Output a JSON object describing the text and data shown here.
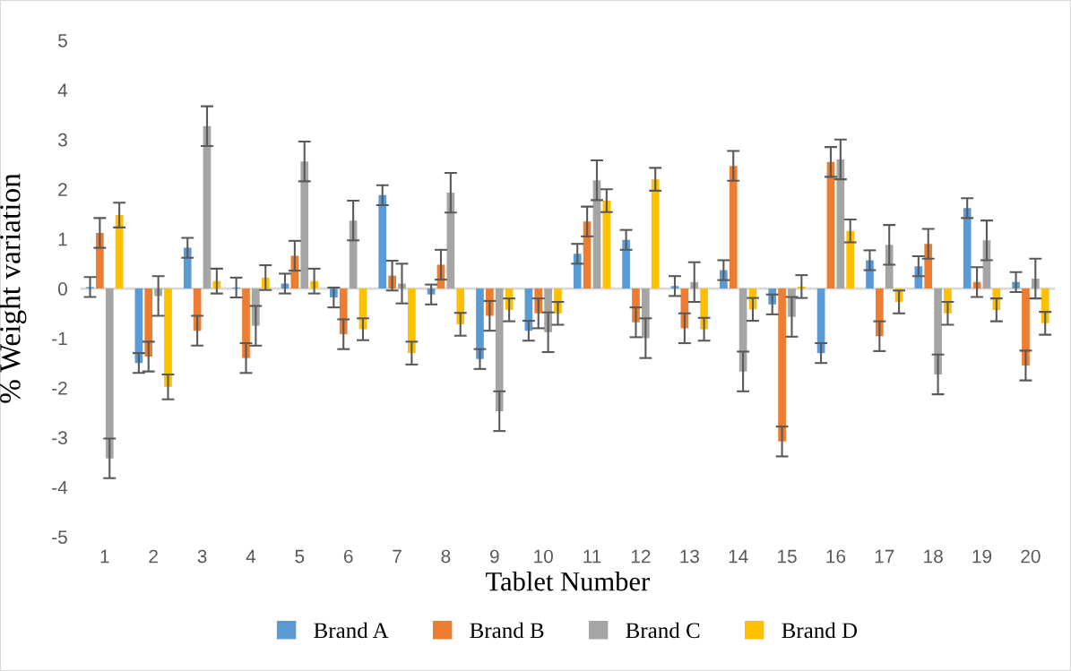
{
  "chart_data": {
    "type": "bar",
    "xlabel": "Tablet Number",
    "ylabel": "% Weight variation",
    "categories": [
      "1",
      "2",
      "3",
      "4",
      "5",
      "6",
      "7",
      "8",
      "9",
      "10",
      "11",
      "12",
      "13",
      "14",
      "15",
      "16",
      "17",
      "18",
      "19",
      "20"
    ],
    "series": [
      {
        "name": "Brand A",
        "color": "#5b9bd5",
        "values": [
          0.03,
          -1.5,
          0.82,
          0.02,
          0.1,
          -0.18,
          1.88,
          -0.12,
          -1.42,
          -0.85,
          0.7,
          0.98,
          0.05,
          0.37,
          -0.32,
          -1.3,
          0.57,
          0.45,
          1.62,
          0.13
        ],
        "errors": [
          0.2,
          0.2,
          0.2,
          0.2,
          0.2,
          0.2,
          0.2,
          0.2,
          0.2,
          0.2,
          0.2,
          0.2,
          0.2,
          0.2,
          0.2,
          0.2,
          0.2,
          0.2,
          0.2,
          0.2
        ]
      },
      {
        "name": "Brand B",
        "color": "#ed7d31",
        "values": [
          1.12,
          -1.37,
          -0.85,
          -1.4,
          0.66,
          -0.92,
          0.26,
          0.48,
          -0.55,
          -0.5,
          1.35,
          -0.68,
          -0.8,
          2.47,
          -3.08,
          2.55,
          -0.96,
          0.9,
          0.13,
          -1.55
        ],
        "errors": [
          0.3,
          0.3,
          0.3,
          0.3,
          0.3,
          0.3,
          0.3,
          0.3,
          0.3,
          0.3,
          0.3,
          0.3,
          0.3,
          0.3,
          0.3,
          0.3,
          0.3,
          0.3,
          0.3,
          0.3
        ]
      },
      {
        "name": "Brand C",
        "color": "#a5a5a5",
        "values": [
          -3.42,
          -0.15,
          3.27,
          -0.75,
          2.56,
          1.37,
          0.1,
          1.93,
          -2.47,
          -0.88,
          2.18,
          -1.0,
          0.13,
          -1.67,
          -0.57,
          2.6,
          0.88,
          -1.73,
          0.97,
          0.2
        ],
        "errors": [
          0.4,
          0.4,
          0.4,
          0.4,
          0.4,
          0.4,
          0.4,
          0.4,
          0.4,
          0.4,
          0.4,
          0.4,
          0.4,
          0.4,
          0.4,
          0.4,
          0.4,
          0.4,
          0.4,
          0.4
        ]
      },
      {
        "name": "Brand D",
        "color": "#ffc000",
        "values": [
          1.48,
          -1.98,
          0.15,
          0.22,
          0.15,
          -0.82,
          -1.3,
          -0.72,
          -0.43,
          -0.5,
          1.77,
          2.2,
          -0.82,
          -0.42,
          0.04,
          1.16,
          -0.27,
          -0.5,
          -0.43,
          -0.7
        ],
        "errors": [
          0.25,
          0.25,
          0.25,
          0.25,
          0.25,
          0.22,
          0.23,
          0.23,
          0.23,
          0.23,
          0.23,
          0.23,
          0.23,
          0.23,
          0.23,
          0.23,
          0.23,
          0.23,
          0.23,
          0.23
        ]
      }
    ],
    "ylim": [
      -5,
      5
    ],
    "yticks": [
      -5,
      -4,
      -3,
      -2,
      -1,
      0,
      1,
      2,
      3,
      4,
      5
    ],
    "ref_lines": [
      {
        "axis": "y",
        "value": 0,
        "color": "#d9d9d9"
      }
    ],
    "grid": false,
    "legend": "bottom"
  }
}
